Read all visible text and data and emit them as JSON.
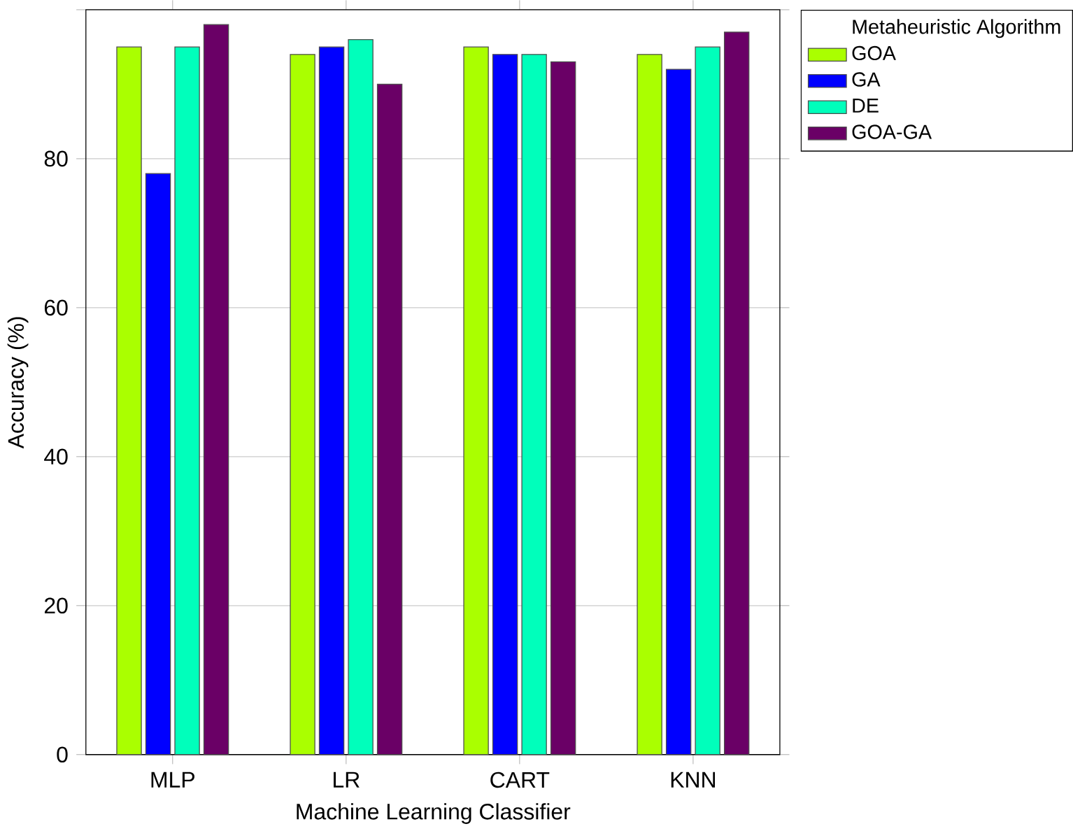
{
  "chart_data": {
    "type": "bar",
    "xlabel": "Machine Learning Classifier",
    "ylabel": "Accuracy (%)",
    "legend_title": "Metaheuristic Algorithm",
    "categories": [
      "MLP",
      "LR",
      "CART",
      "KNN"
    ],
    "series": [
      {
        "name": "GOA",
        "color": "#aaff00",
        "values": [
          95,
          94,
          95,
          94
        ]
      },
      {
        "name": "GA",
        "color": "#0000ff",
        "values": [
          78,
          95,
          94,
          92
        ]
      },
      {
        "name": "DE",
        "color": "#00ffbb",
        "values": [
          95,
          96,
          94,
          95
        ]
      },
      {
        "name": "GOA-GA",
        "color": "#6a0066",
        "values": [
          98,
          90,
          93,
          97
        ]
      }
    ],
    "ylim": [
      0,
      100
    ],
    "yticks": [
      0,
      20,
      40,
      60,
      80,
      {
        "value": 100,
        "label": null
      }
    ],
    "grid": "y",
    "legend": "top right"
  }
}
